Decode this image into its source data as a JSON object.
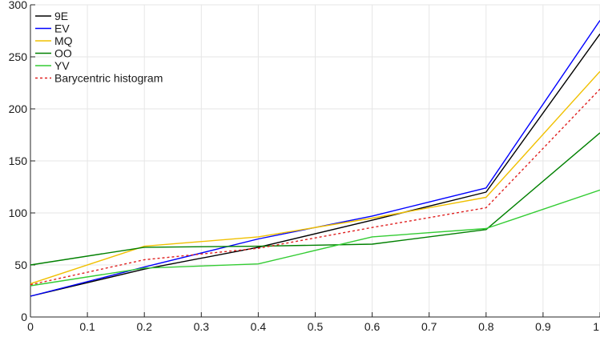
{
  "chart_data": {
    "type": "line",
    "title": "",
    "xlabel": "",
    "ylabel": "",
    "xlim": [
      0,
      1
    ],
    "ylim": [
      0,
      300
    ],
    "grid": true,
    "legend_position": "top-left",
    "x": [
      0,
      0.2,
      0.4,
      0.6,
      0.8,
      1.0
    ],
    "x_ticks": [
      "0",
      "0.1",
      "0.2",
      "0.3",
      "0.4",
      "0.5",
      "0.6",
      "0.7",
      "0.8",
      "0.9",
      "1"
    ],
    "y_ticks": [
      "0",
      "50",
      "100",
      "150",
      "200",
      "250",
      "300"
    ],
    "series": [
      {
        "name": "9E",
        "color": "#000000",
        "dash": "solid",
        "values": [
          20,
          46,
          67,
          93,
          120,
          272
        ]
      },
      {
        "name": "EV",
        "color": "#0000ff",
        "dash": "solid",
        "values": [
          20,
          48,
          75,
          97,
          124,
          285
        ]
      },
      {
        "name": "MQ",
        "color": "#f0c000",
        "dash": "solid",
        "values": [
          32,
          68,
          77,
          95,
          115,
          236
        ]
      },
      {
        "name": "OO",
        "color": "#008000",
        "dash": "solid",
        "values": [
          50,
          67,
          68,
          70,
          84,
          177
        ]
      },
      {
        "name": "YV",
        "color": "#33cc33",
        "dash": "solid",
        "values": [
          30,
          47,
          51,
          77,
          85,
          122
        ]
      },
      {
        "name": "Barycentric histogram",
        "color": "#e02020",
        "dash": "dotted",
        "values": [
          31,
          55,
          66,
          86,
          105,
          219
        ]
      }
    ]
  }
}
